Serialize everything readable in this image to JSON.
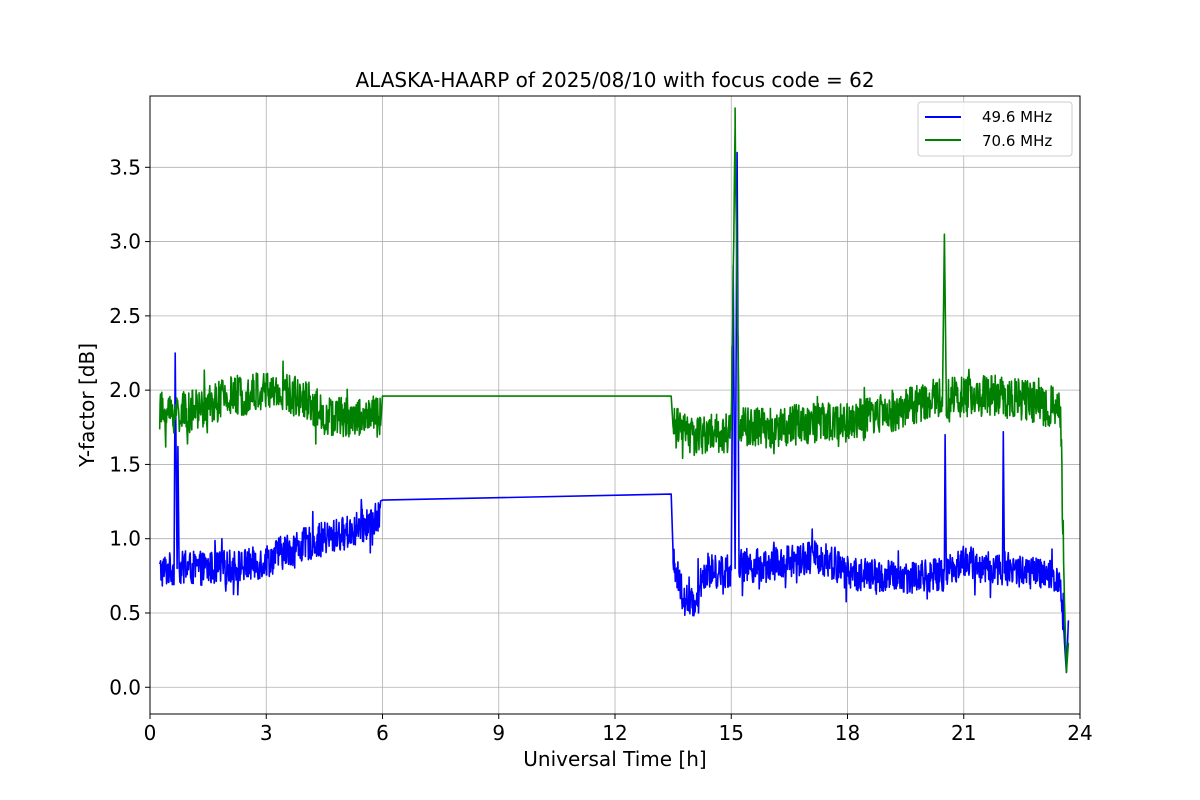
{
  "chart_data": {
    "type": "line",
    "title": "ALASKA-HAARP of 2025/08/10 with focus code = 62",
    "xlabel": "Universal Time [h]",
    "ylabel": "Y-factor [dB]",
    "xlim": [
      0,
      24
    ],
    "ylim": [
      -0.18,
      3.98
    ],
    "xticks": [
      0,
      3,
      6,
      9,
      12,
      15,
      18,
      21,
      24
    ],
    "xtick_labels": [
      "0",
      "3",
      "6",
      "9",
      "12",
      "15",
      "18",
      "21",
      "24"
    ],
    "yticks": [
      0.0,
      0.5,
      1.0,
      1.5,
      2.0,
      2.5,
      3.0,
      3.5
    ],
    "ytick_labels": [
      "0.0",
      "0.5",
      "1.0",
      "1.5",
      "2.0",
      "2.5",
      "3.0",
      "3.5"
    ],
    "grid": true,
    "legend_position": "top-right",
    "series": [
      {
        "name": "49.6 MHz",
        "color": "#0000ff",
        "noise": 0.23,
        "points": [
          [
            0.25,
            0.78
          ],
          [
            0.62,
            0.8
          ],
          [
            0.65,
            2.25
          ],
          [
            0.7,
            0.8
          ],
          [
            0.72,
            1.62
          ],
          [
            0.75,
            0.8
          ],
          [
            1.5,
            0.8
          ],
          [
            2.5,
            0.82
          ],
          [
            3.0,
            0.85
          ],
          [
            3.5,
            0.92
          ],
          [
            4.5,
            1.0
          ],
          [
            5.2,
            1.05
          ],
          [
            5.95,
            1.14
          ],
          [
            6.0,
            1.26
          ],
          [
            13.45,
            1.3
          ],
          [
            13.5,
            0.9
          ],
          [
            13.6,
            0.75
          ],
          [
            13.8,
            0.6
          ],
          [
            14.0,
            0.55
          ],
          [
            14.3,
            0.78
          ],
          [
            15.0,
            0.78
          ],
          [
            15.05,
            2.84
          ],
          [
            15.1,
            0.8
          ],
          [
            15.15,
            3.6
          ],
          [
            15.2,
            0.82
          ],
          [
            16.0,
            0.82
          ],
          [
            17.0,
            0.88
          ],
          [
            17.5,
            0.85
          ],
          [
            18.0,
            0.77
          ],
          [
            19.0,
            0.74
          ],
          [
            20.0,
            0.75
          ],
          [
            20.5,
            0.76
          ],
          [
            20.52,
            1.7
          ],
          [
            20.55,
            0.78
          ],
          [
            21.0,
            0.85
          ],
          [
            21.5,
            0.8
          ],
          [
            22.0,
            0.8
          ],
          [
            22.02,
            1.72
          ],
          [
            22.05,
            0.8
          ],
          [
            23.0,
            0.76
          ],
          [
            23.5,
            0.72
          ],
          [
            23.6,
            0.3
          ],
          [
            23.65,
            0.1
          ],
          [
            23.7,
            0.45
          ]
        ]
      },
      {
        "name": "70.6 MHz",
        "color": "#008000",
        "noise": 0.28,
        "points": [
          [
            0.25,
            1.85
          ],
          [
            1.0,
            1.85
          ],
          [
            2.0,
            1.95
          ],
          [
            3.0,
            2.0
          ],
          [
            4.0,
            1.95
          ],
          [
            4.5,
            1.82
          ],
          [
            5.5,
            1.82
          ],
          [
            5.95,
            1.82
          ],
          [
            6.0,
            1.96
          ],
          [
            13.45,
            1.96
          ],
          [
            13.5,
            1.75
          ],
          [
            14.0,
            1.7
          ],
          [
            15.0,
            1.72
          ],
          [
            15.1,
            3.8
          ],
          [
            15.2,
            1.75
          ],
          [
            16.0,
            1.75
          ],
          [
            17.0,
            1.78
          ],
          [
            18.0,
            1.78
          ],
          [
            19.0,
            1.85
          ],
          [
            20.0,
            1.92
          ],
          [
            20.45,
            1.95
          ],
          [
            20.5,
            3.05
          ],
          [
            20.55,
            1.95
          ],
          [
            21.0,
            1.96
          ],
          [
            22.0,
            1.97
          ],
          [
            23.0,
            1.9
          ],
          [
            23.5,
            1.88
          ],
          [
            23.6,
            0.6
          ],
          [
            23.65,
            0.1
          ],
          [
            23.7,
            0.3
          ]
        ]
      }
    ]
  }
}
